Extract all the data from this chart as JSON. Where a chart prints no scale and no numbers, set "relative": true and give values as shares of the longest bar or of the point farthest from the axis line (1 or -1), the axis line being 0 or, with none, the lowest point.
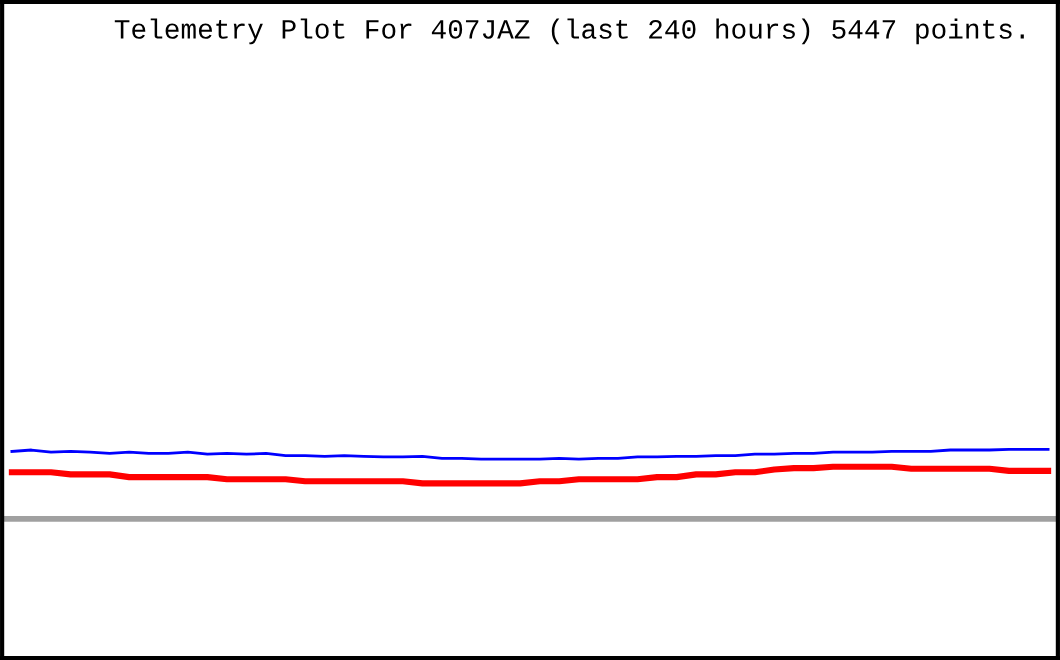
{
  "chart_data": {
    "type": "line",
    "title": "Telemetry Plot For 407JAZ (last 240 hours) 5447 points.",
    "relative": true,
    "categories": [
      null,
      null,
      null,
      null,
      null,
      null,
      null,
      null,
      null,
      null,
      null,
      null,
      null,
      null,
      null,
      null,
      null,
      null,
      null,
      null,
      null,
      null,
      null,
      null,
      null,
      null,
      null,
      null,
      null,
      null,
      null,
      null,
      null,
      null,
      null,
      null,
      null,
      null,
      null,
      null,
      null,
      null,
      null,
      null,
      null,
      null,
      null,
      null,
      null,
      null,
      null,
      null,
      null,
      null
    ],
    "series": [
      {
        "color": "#0000ff",
        "values": [
          0.97,
          0.99,
          0.96,
          0.97,
          0.96,
          0.94,
          0.96,
          0.94,
          0.94,
          0.96,
          0.93,
          0.94,
          0.93,
          0.94,
          0.91,
          0.91,
          0.9,
          0.91,
          0.9,
          0.89,
          0.89,
          0.9,
          0.87,
          0.87,
          0.86,
          0.86,
          0.86,
          0.86,
          0.87,
          0.86,
          0.87,
          0.87,
          0.89,
          0.89,
          0.9,
          0.9,
          0.91,
          0.91,
          0.93,
          0.93,
          0.94,
          0.94,
          0.96,
          0.96,
          0.96,
          0.97,
          0.97,
          0.97,
          0.99,
          0.99,
          0.99,
          1,
          1,
          1
        ]
      },
      {
        "color": "#ff0000",
        "values": [
          0.67,
          0.67,
          0.67,
          0.64,
          0.64,
          0.64,
          0.6,
          0.6,
          0.6,
          0.6,
          0.6,
          0.57,
          0.57,
          0.57,
          0.57,
          0.54,
          0.54,
          0.54,
          0.54,
          0.54,
          0.54,
          0.51,
          0.51,
          0.51,
          0.51,
          0.51,
          0.51,
          0.54,
          0.54,
          0.57,
          0.57,
          0.57,
          0.57,
          0.6,
          0.6,
          0.64,
          0.64,
          0.67,
          0.67,
          0.71,
          0.73,
          0.73,
          0.75,
          0.75,
          0.75,
          0.75,
          0.72,
          0.72,
          0.72,
          0.72,
          0.72,
          0.69,
          0.69,
          0.69
        ]
      }
    ]
  }
}
